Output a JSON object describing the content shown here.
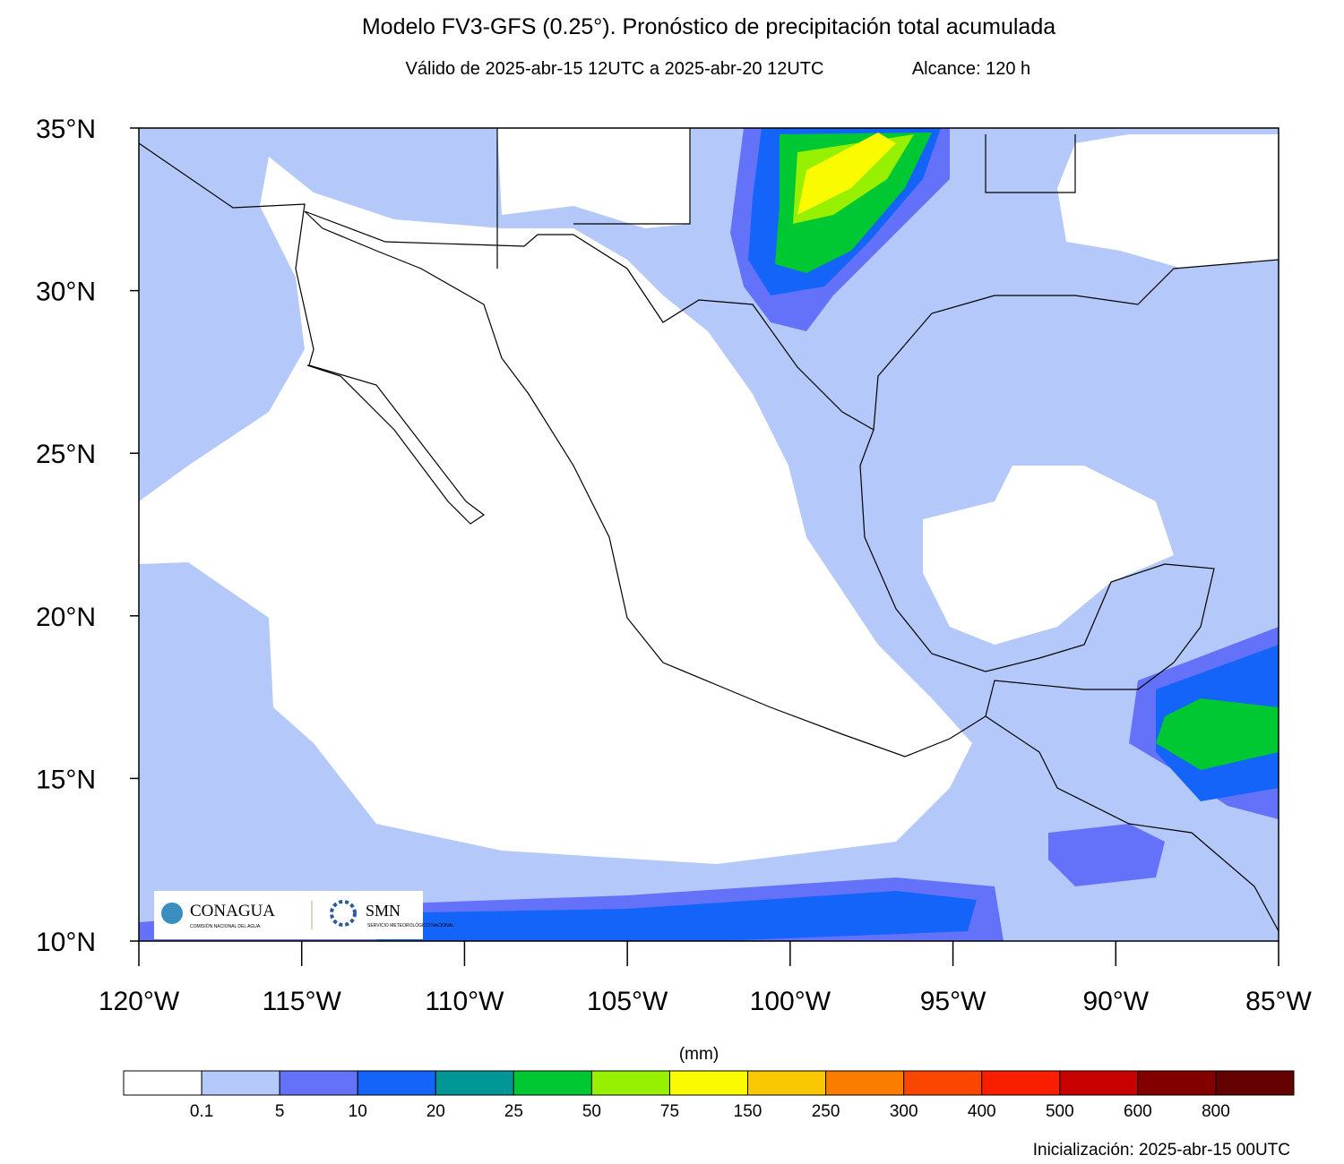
{
  "header": {
    "title": "Modelo FV3-GFS (0.25°). Pronóstico de precipitación total acumulada",
    "valid": "Válido de 2025-abr-15 12UTC a 2025-abr-20 12UTC",
    "lead": "Alcance: 120 h"
  },
  "map": {
    "xlim": [
      -120,
      -85
    ],
    "ylim": [
      10,
      35
    ],
    "lat_ticks": [
      {
        "value": 35,
        "label": "35°N"
      },
      {
        "value": 30,
        "label": "30°N"
      },
      {
        "value": 25,
        "label": "25°N"
      },
      {
        "value": 20,
        "label": "20°N"
      },
      {
        "value": 15,
        "label": "15°N"
      },
      {
        "value": 10,
        "label": "10°N"
      }
    ],
    "lon_ticks": [
      {
        "value": -120,
        "label": "120°W"
      },
      {
        "value": -115,
        "label": "115°W"
      },
      {
        "value": -110,
        "label": "110°W"
      },
      {
        "value": -105,
        "label": "105°W"
      },
      {
        "value": -100,
        "label": "100°W"
      },
      {
        "value": -95,
        "label": "95°W"
      },
      {
        "value": -90,
        "label": "90°W"
      },
      {
        "value": -85,
        "label": "85°W"
      }
    ]
  },
  "colorbar": {
    "unit": "(mm)",
    "levels": [
      "0.1",
      "5",
      "10",
      "20",
      "25",
      "50",
      "75",
      "150",
      "250",
      "300",
      "400",
      "500",
      "600",
      "800"
    ],
    "colors": [
      "#ffffff",
      "#b4c8fa",
      "#6472fa",
      "#1464fa",
      "#009696",
      "#00c832",
      "#96f000",
      "#fafa00",
      "#fac800",
      "#fa7d00",
      "#fa4600",
      "#fa1e00",
      "#c80000",
      "#820000",
      "#640000"
    ]
  },
  "footer": {
    "init": "Inicialización: 2025-abr-15 00UTC"
  },
  "logos": {
    "conagua": "CONAGUA",
    "conagua_sub": "COMISIÓN NACIONAL DEL AGUA",
    "smn": "SMN",
    "smn_sub": "SERVICIO METEOROLÓGICO NACIONAL"
  }
}
